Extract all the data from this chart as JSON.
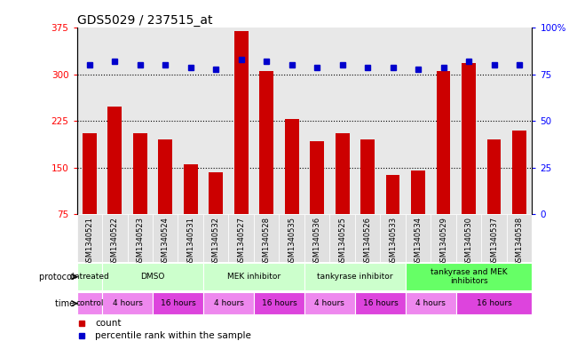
{
  "title": "GDS5029 / 237515_at",
  "samples": [
    "GSM1340521",
    "GSM1340522",
    "GSM1340523",
    "GSM1340524",
    "GSM1340531",
    "GSM1340532",
    "GSM1340527",
    "GSM1340528",
    "GSM1340535",
    "GSM1340536",
    "GSM1340525",
    "GSM1340526",
    "GSM1340533",
    "GSM1340534",
    "GSM1340529",
    "GSM1340530",
    "GSM1340537",
    "GSM1340538"
  ],
  "counts": [
    205,
    248,
    205,
    195,
    155,
    143,
    370,
    305,
    228,
    192,
    205,
    195,
    138,
    145,
    305,
    318,
    195,
    210
  ],
  "percentiles": [
    80,
    82,
    80,
    80,
    79,
    78,
    83,
    82,
    80,
    79,
    80,
    79,
    79,
    78,
    79,
    82,
    80,
    80
  ],
  "ylim_left": [
    75,
    375
  ],
  "ylim_right": [
    0,
    100
  ],
  "yticks_left": [
    75,
    150,
    225,
    300,
    375
  ],
  "yticks_right": [
    0,
    25,
    50,
    75,
    100
  ],
  "bar_color": "#cc0000",
  "dot_color": "#0000cc",
  "proto_groups": [
    {
      "label": "untreated",
      "start": 0,
      "end": 1,
      "color": "#ccffcc"
    },
    {
      "label": "DMSO",
      "start": 1,
      "end": 5,
      "color": "#ccffcc"
    },
    {
      "label": "MEK inhibitor",
      "start": 5,
      "end": 9,
      "color": "#ccffcc"
    },
    {
      "label": "tankyrase inhibitor",
      "start": 9,
      "end": 13,
      "color": "#ccffcc"
    },
    {
      "label": "tankyrase and MEK\ninhibitors",
      "start": 13,
      "end": 18,
      "color": "#66ff66"
    }
  ],
  "time_groups": [
    {
      "label": "control",
      "start": 0,
      "end": 1,
      "color": "#ee88ee"
    },
    {
      "label": "4 hours",
      "start": 1,
      "end": 3,
      "color": "#ee88ee"
    },
    {
      "label": "16 hours",
      "start": 3,
      "end": 5,
      "color": "#dd44dd"
    },
    {
      "label": "4 hours",
      "start": 5,
      "end": 7,
      "color": "#ee88ee"
    },
    {
      "label": "16 hours",
      "start": 7,
      "end": 9,
      "color": "#dd44dd"
    },
    {
      "label": "4 hours",
      "start": 9,
      "end": 11,
      "color": "#ee88ee"
    },
    {
      "label": "16 hours",
      "start": 11,
      "end": 13,
      "color": "#dd44dd"
    },
    {
      "label": "4 hours",
      "start": 13,
      "end": 15,
      "color": "#ee88ee"
    },
    {
      "label": "16 hours",
      "start": 15,
      "end": 18,
      "color": "#dd44dd"
    }
  ]
}
